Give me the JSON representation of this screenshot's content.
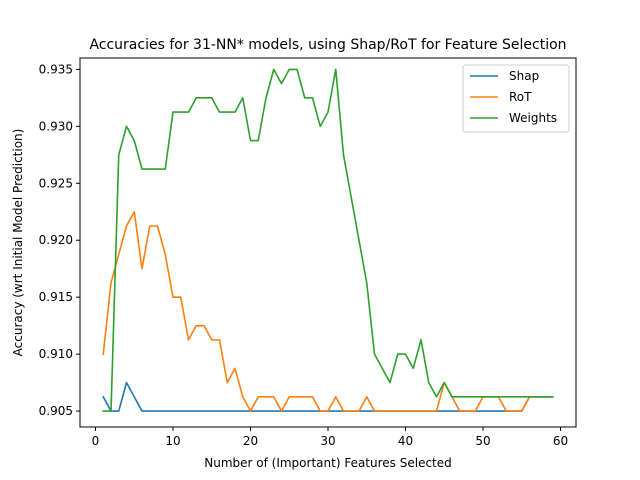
{
  "chart_data": {
    "type": "line",
    "title": "Accuracies for 31-NN* models, using Shap/RoT for Feature Selection",
    "xlabel": "Number of (Important) Features Selected",
    "ylabel": "Accuracy (wrt Initial Model Prediction)",
    "xlim": [
      -2,
      62
    ],
    "ylim": [
      0.9036,
      0.936
    ],
    "xticks": [
      0,
      10,
      20,
      30,
      40,
      50,
      60
    ],
    "yticks": [
      0.905,
      0.91,
      0.915,
      0.92,
      0.925,
      0.93,
      0.935
    ],
    "ytick_labels": [
      "0.905",
      "0.910",
      "0.915",
      "0.920",
      "0.925",
      "0.930",
      "0.935"
    ],
    "legend_position": "top-right",
    "x": [
      1,
      2,
      3,
      4,
      5,
      6,
      7,
      8,
      9,
      10,
      11,
      12,
      13,
      14,
      15,
      16,
      17,
      18,
      19,
      20,
      21,
      22,
      23,
      24,
      25,
      26,
      27,
      28,
      29,
      30,
      31,
      32,
      33,
      34,
      35,
      36,
      37,
      38,
      39,
      40,
      41,
      42,
      43,
      44,
      45,
      46,
      47,
      48,
      49,
      50,
      51,
      52,
      53,
      54,
      55,
      56,
      57,
      58,
      59
    ],
    "series": [
      {
        "name": "Shap",
        "color": "#1f77b4",
        "values": [
          0.90625,
          0.905,
          0.905,
          0.9075,
          0.90625,
          0.905,
          0.905,
          0.905,
          0.905,
          0.905,
          0.905,
          0.905,
          0.905,
          0.905,
          0.905,
          0.905,
          0.905,
          0.905,
          0.905,
          0.905,
          0.905,
          0.905,
          0.905,
          0.905,
          0.905,
          0.905,
          0.905,
          0.905,
          0.905,
          0.905,
          0.905,
          0.905,
          0.905,
          0.905,
          0.905,
          0.905,
          0.905,
          0.905,
          0.905,
          0.905,
          0.905,
          0.905,
          0.905,
          0.905,
          0.905,
          0.905,
          0.905,
          0.905,
          0.905,
          0.905,
          0.905,
          0.905,
          0.905,
          0.905,
          0.905,
          0.90625,
          0.90625,
          0.90625,
          0.90625
        ]
      },
      {
        "name": "RoT",
        "color": "#ff7f0e",
        "values": [
          0.91,
          0.91625,
          0.91875,
          0.92125,
          0.9225,
          0.9175,
          0.92125,
          0.92125,
          0.91875,
          0.915,
          0.915,
          0.91125,
          0.9125,
          0.9125,
          0.91125,
          0.91125,
          0.9075,
          0.90875,
          0.90625,
          0.905,
          0.90625,
          0.90625,
          0.90625,
          0.905,
          0.90625,
          0.90625,
          0.90625,
          0.90625,
          0.905,
          0.905,
          0.90625,
          0.905,
          0.905,
          0.905,
          0.90625,
          0.905,
          0.905,
          0.905,
          0.905,
          0.905,
          0.905,
          0.905,
          0.905,
          0.905,
          0.9075,
          0.90625,
          0.905,
          0.905,
          0.905,
          0.90625,
          0.90625,
          0.90625,
          0.905,
          0.905,
          0.905,
          0.90625,
          0.90625,
          0.90625,
          0.90625
        ]
      },
      {
        "name": "Weights",
        "color": "#2ca02c",
        "values": [
          0.905,
          0.905,
          0.9275,
          0.93,
          0.92875,
          0.92625,
          0.92625,
          0.92625,
          0.92625,
          0.93125,
          0.93125,
          0.93125,
          0.9325,
          0.9325,
          0.9325,
          0.93125,
          0.93125,
          0.93125,
          0.9325,
          0.92875,
          0.92875,
          0.9325,
          0.935,
          0.93375,
          0.935,
          0.935,
          0.9325,
          0.9325,
          0.93,
          0.93125,
          0.935,
          0.9275,
          0.92375,
          0.92,
          0.91625,
          0.91,
          0.90875,
          0.9075,
          0.91,
          0.91,
          0.90875,
          0.91125,
          0.9075,
          0.90625,
          0.9075,
          0.90625,
          0.90625,
          0.90625,
          0.90625,
          0.90625,
          0.90625,
          0.90625,
          0.90625,
          0.90625,
          0.90625,
          0.90625,
          0.90625,
          0.90625,
          0.90625
        ]
      }
    ]
  }
}
